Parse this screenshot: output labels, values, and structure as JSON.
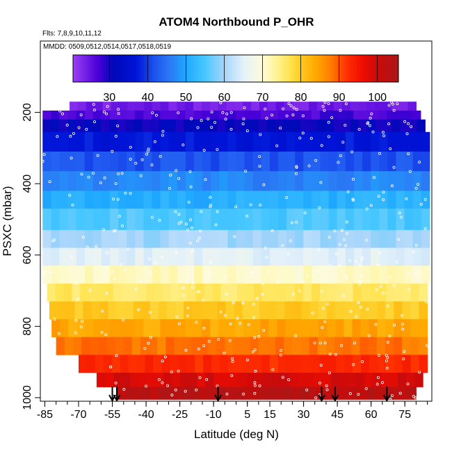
{
  "chart_data": {
    "type": "heatmap",
    "title": "ATOM4 Northbound P_OHR",
    "subtitle_flights": "Flts: 7,8,9,10,11,12",
    "subtitle_dates": "MMDD: 0509,0512,0514,0517,0518,0519",
    "xlabel": "Latitude (deg N)",
    "ylabel": "PSXC (mbar)",
    "xlim": [
      -87,
      87
    ],
    "ylim_reversed": [
      1010,
      0
    ],
    "x_ticks": [
      -85,
      -70,
      -55,
      -40,
      -25,
      -10,
      5,
      15,
      30,
      45,
      60,
      75
    ],
    "x_tick_labels": [
      "-85",
      "-70",
      "-55",
      "-40",
      "-25",
      "-10",
      "5",
      "15",
      "30",
      "45",
      "60",
      "75"
    ],
    "x_minor_step": 5,
    "y_ticks": [
      200,
      400,
      600,
      800,
      1000
    ],
    "y_tick_labels": [
      "200",
      "400",
      "600",
      "800",
      "1000"
    ],
    "colorbar": {
      "ticks": [
        30,
        40,
        50,
        60,
        70,
        80,
        90,
        100
      ],
      "range": [
        20.5,
        105.5
      ],
      "stops": [
        {
          "v": 20.5,
          "c": "#9d3ff5"
        },
        {
          "v": 27,
          "c": "#4a00d8"
        },
        {
          "v": 31,
          "c": "#0008b8"
        },
        {
          "v": 37,
          "c": "#0014d8"
        },
        {
          "v": 42,
          "c": "#1f55f0"
        },
        {
          "v": 46,
          "c": "#2b7bf5"
        },
        {
          "v": 50,
          "c": "#1ea8ff"
        },
        {
          "v": 55,
          "c": "#48c8ff"
        },
        {
          "v": 60,
          "c": "#a6d4fb"
        },
        {
          "v": 65,
          "c": "#e4f1fa"
        },
        {
          "v": 70,
          "c": "#fdfbd9"
        },
        {
          "v": 73,
          "c": "#fff5a0"
        },
        {
          "v": 77,
          "c": "#ffe454"
        },
        {
          "v": 80,
          "c": "#ffca20"
        },
        {
          "v": 84,
          "c": "#ffa800"
        },
        {
          "v": 88,
          "c": "#ff7a00"
        },
        {
          "v": 92,
          "c": "#ff3000"
        },
        {
          "v": 96,
          "c": "#f00d00"
        },
        {
          "v": 100,
          "c": "#cc0a0a"
        },
        {
          "v": 105.5,
          "c": "#a91717"
        }
      ]
    },
    "pressure_bands": [
      {
        "p_top": 170,
        "p_bot": 195,
        "lat_min": -74,
        "lat_max": 80,
        "value": 24
      },
      {
        "p_top": 195,
        "p_bot": 220,
        "lat_min": -86,
        "lat_max": 82,
        "value": 27
      },
      {
        "p_top": 220,
        "p_bot": 255,
        "lat_min": -86,
        "lat_max": 84,
        "value": 31
      },
      {
        "p_top": 255,
        "p_bot": 310,
        "lat_min": -86,
        "lat_max": 86,
        "value": 37
      },
      {
        "p_top": 310,
        "p_bot": 365,
        "lat_min": -86,
        "lat_max": 86,
        "value": 42
      },
      {
        "p_top": 365,
        "p_bot": 420,
        "lat_min": -86,
        "lat_max": 86,
        "value": 47
      },
      {
        "p_top": 420,
        "p_bot": 470,
        "lat_min": -86,
        "lat_max": 86,
        "value": 51
      },
      {
        "p_top": 470,
        "p_bot": 530,
        "lat_min": -86,
        "lat_max": 86,
        "value": 55
      },
      {
        "p_top": 530,
        "p_bot": 580,
        "lat_min": -86,
        "lat_max": 86,
        "value": 60
      },
      {
        "p_top": 580,
        "p_bot": 630,
        "lat_min": -86,
        "lat_max": 86,
        "value": 65
      },
      {
        "p_top": 630,
        "p_bot": 680,
        "lat_min": -86,
        "lat_max": 86,
        "value": 71
      },
      {
        "p_top": 680,
        "p_bot": 730,
        "lat_min": -84,
        "lat_max": 85,
        "value": 76
      },
      {
        "p_top": 730,
        "p_bot": 780,
        "lat_min": -83,
        "lat_max": 85,
        "value": 80
      },
      {
        "p_top": 780,
        "p_bot": 830,
        "lat_min": -82,
        "lat_max": 85,
        "value": 84
      },
      {
        "p_top": 830,
        "p_bot": 880,
        "lat_min": -80,
        "lat_max": 85,
        "value": 88
      },
      {
        "p_top": 880,
        "p_bot": 930,
        "lat_min": -70,
        "lat_max": 85,
        "value": 93
      },
      {
        "p_top": 930,
        "p_bot": 970,
        "lat_min": -62,
        "lat_max": 83,
        "value": 99
      },
      {
        "p_top": 970,
        "p_bot": 1005,
        "lat_min": -53,
        "lat_max": 80,
        "value": 103
      }
    ],
    "arrows_lat": [
      -55,
      -53,
      -8,
      38,
      44,
      67
    ]
  }
}
